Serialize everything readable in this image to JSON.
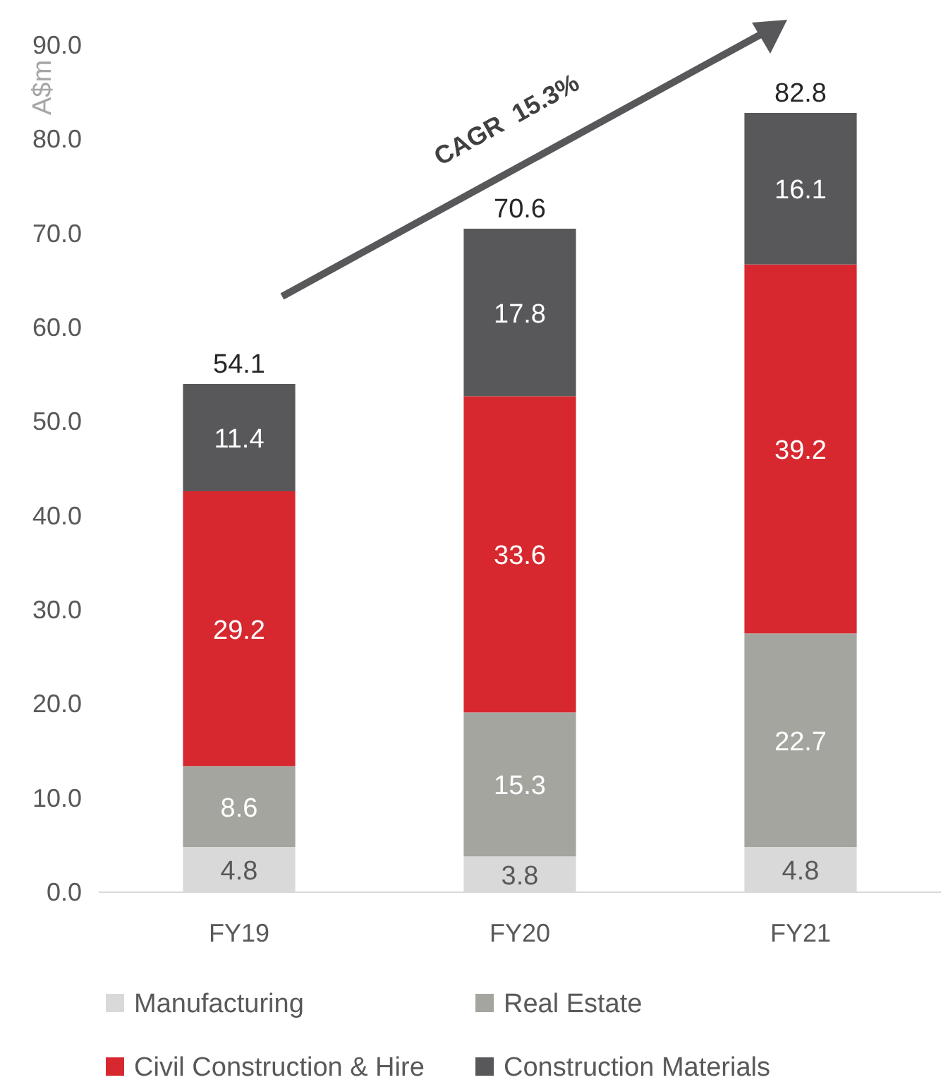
{
  "chart_data": {
    "type": "bar",
    "stacked": true,
    "categories": [
      "FY19",
      "FY20",
      "FY21"
    ],
    "series": [
      {
        "name": "Manufacturing",
        "color": "#d9d9d9",
        "values": [
          4.8,
          3.8,
          4.8
        ]
      },
      {
        "name": "Real Estate",
        "color": "#a5a5a0",
        "values": [
          8.6,
          15.3,
          22.7
        ]
      },
      {
        "name": "Civil Construction & Hire",
        "color": "#d7282f",
        "values": [
          29.2,
          33.6,
          39.2
        ]
      },
      {
        "name": "Construction Materials",
        "color": "#58585a",
        "values": [
          11.4,
          17.8,
          16.1
        ]
      }
    ],
    "totals": [
      "54.1",
      "70.6",
      "82.8"
    ],
    "data_labels": true,
    "ylabel": "A$m",
    "ylim": [
      0,
      90
    ],
    "yticks": [
      {
        "value": 0,
        "label": "0.0"
      },
      {
        "value": 10,
        "label": "10.0"
      },
      {
        "value": 20,
        "label": "20.0"
      },
      {
        "value": 30,
        "label": "30.0"
      },
      {
        "value": 40,
        "label": "40.0"
      },
      {
        "value": 50,
        "label": "50.0"
      },
      {
        "value": 60,
        "label": "60.0"
      },
      {
        "value": 70,
        "label": "70.0"
      },
      {
        "value": 80,
        "label": "80.0"
      },
      {
        "value": 90,
        "label": "90.0"
      }
    ],
    "grid": false,
    "legend": "bottom",
    "annotations": [
      "CAGR  15.3%"
    ]
  }
}
